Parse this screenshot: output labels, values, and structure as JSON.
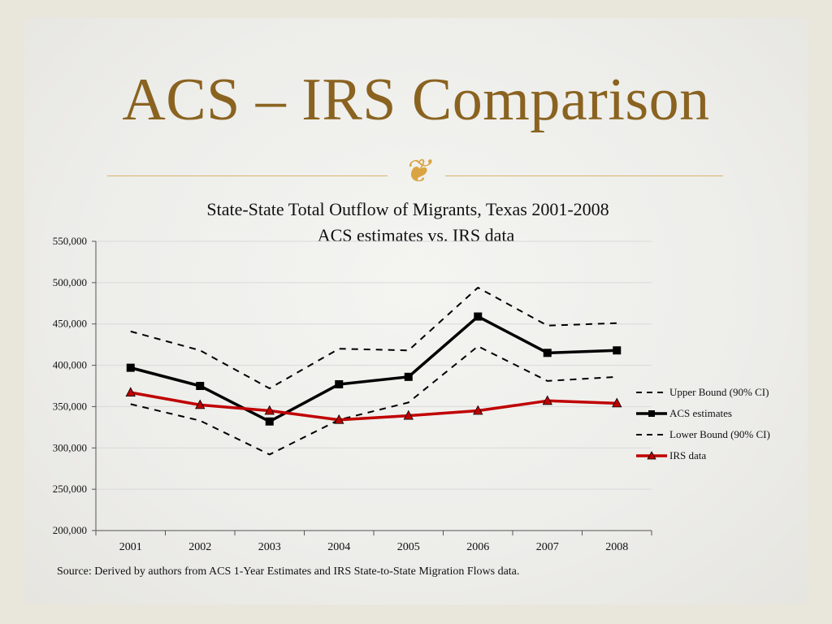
{
  "slide": {
    "title": "ACS – IRS Comparison",
    "ornament": "❦",
    "source": "Source: Derived by authors from ACS 1-Year Estimates and IRS State-to-State Migration Flows data."
  },
  "colors": {
    "title": "#8a6320",
    "divider": "#d9b46b",
    "acs": "#000000",
    "irs": "#c00000",
    "bounds": "#000000",
    "grid": "#d9d9d9"
  },
  "chart_data": {
    "type": "line",
    "title": "State-State Total Outflow of Migrants, Texas 2001-2008",
    "subtitle": "ACS estimates vs. IRS data",
    "xlabel": "",
    "ylabel": "",
    "categories": [
      "2001",
      "2002",
      "2003",
      "2004",
      "2005",
      "2006",
      "2007",
      "2008"
    ],
    "ylim": [
      200000,
      550000
    ],
    "yticks": [
      200000,
      250000,
      300000,
      350000,
      400000,
      450000,
      500000,
      550000
    ],
    "ytick_labels": [
      "200,000",
      "250,000",
      "300,000",
      "350,000",
      "400,000",
      "450,000",
      "500,000",
      "550,000"
    ],
    "grid": true,
    "legend_position": "right",
    "series": [
      {
        "name": "Upper Bound (90% CI)",
        "style": "dashed",
        "marker": "none",
        "color": "#000000",
        "values": [
          441000,
          418000,
          372000,
          420000,
          418000,
          494000,
          448000,
          451000
        ]
      },
      {
        "name": "ACS estimates",
        "style": "solid",
        "marker": "square",
        "color": "#000000",
        "values": [
          397000,
          375000,
          332000,
          377000,
          386000,
          459000,
          415000,
          418000
        ]
      },
      {
        "name": "Lower Bound (90% CI)",
        "style": "dashed",
        "marker": "none",
        "color": "#000000",
        "values": [
          353000,
          333000,
          292000,
          334000,
          355000,
          423000,
          381000,
          386000
        ]
      },
      {
        "name": "IRS data",
        "style": "solid",
        "marker": "triangle",
        "color": "#c00000",
        "values": [
          367000,
          352000,
          345000,
          334000,
          339000,
          345000,
          357000,
          354000
        ]
      }
    ]
  }
}
